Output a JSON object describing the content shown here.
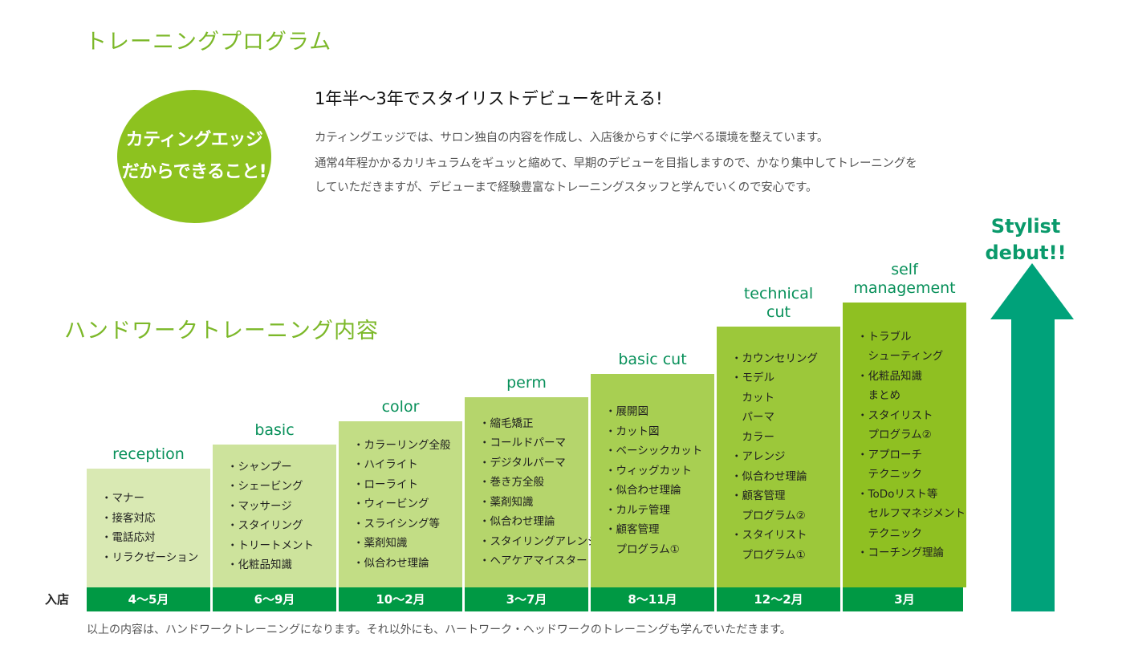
{
  "training_program": {
    "title": "トレーニングプログラム",
    "circle_line1": "カティングエッジ",
    "circle_line2": "だからできること!",
    "headline": "1年半〜3年でスタイリストデビューを叶える!",
    "intro_lines": [
      "カティングエッジでは、サロン独自の内容を作成し、入店後からすぐに学べる環境を整えています。",
      "通常4年程かかるカリキュラムをギュッと縮めて、早期のデビューを目指しますので、かなり集中してトレーニングを",
      "していただきますが、デビューまで経験豊富なトレーニングスタッフと学んでいくので安心です。"
    ]
  },
  "handwork": {
    "title": "ハンドワークトレーニング内容",
    "start_label": "入店",
    "colors": {
      "steps": [
        "#d9e9b3",
        "#cde39c",
        "#c2dd85",
        "#b5d56c",
        "#a8cf52",
        "#9cc83a",
        "#8fc022"
      ],
      "period_bar": "#009944",
      "stage_label": "#08905a",
      "arrow": "#00a27a"
    },
    "stages": [
      {
        "label_lines": [
          "reception"
        ],
        "period": "4〜5月",
        "items": [
          "・マナー",
          "・接客対応",
          "・電話応対",
          "・リラクゼーション"
        ]
      },
      {
        "label_lines": [
          "basic"
        ],
        "period": "6〜9月",
        "items": [
          "・シャンプー",
          "・シェービング",
          "・マッサージ",
          "・スタイリング",
          "・トリートメント",
          "・化粧品知識"
        ]
      },
      {
        "label_lines": [
          "color"
        ],
        "period": "10〜2月",
        "items": [
          "・カラーリング全般",
          "・ハイライト",
          "・ローライト",
          "・ウィービング",
          "・スライシング等",
          "・薬剤知識",
          "・似合わせ理論"
        ]
      },
      {
        "label_lines": [
          "perm"
        ],
        "period": "3〜7月",
        "items": [
          "・縮毛矯正",
          "・コールドパーマ",
          "・デジタルパーマ",
          "・巻き方全般",
          "・薬剤知識",
          "・似合わせ理論",
          "・スタイリングアレンジ",
          "・ヘアケアマイスター"
        ]
      },
      {
        "label_lines": [
          "basic cut"
        ],
        "period": "8〜11月",
        "items": [
          "・展開図",
          "・カット図",
          "・ベーシックカット",
          "・ウィッグカット",
          "・似合わせ理論",
          "・カルテ管理",
          "・顧客管理",
          "　プログラム①"
        ]
      },
      {
        "label_lines": [
          "technical",
          "cut"
        ],
        "period": "12〜2月",
        "items": [
          "・カウンセリング",
          "・モデル",
          "　カット",
          "　パーマ",
          "　カラー",
          "・アレンジ",
          "・似合わせ理論",
          "・顧客管理",
          "　プログラム②",
          "・スタイリスト",
          "　プログラム①"
        ]
      },
      {
        "label_lines": [
          "self",
          "management"
        ],
        "period": "3月",
        "items": [
          "・トラブル",
          "　シューティング",
          "・化粧品知識",
          "　まとめ",
          "・スタイリスト",
          "　プログラム②",
          "・アプローチ",
          "　テクニック",
          "・ToDoリスト等",
          "　セルフマネジメント",
          "　テクニック",
          "・コーチング理論"
        ]
      }
    ],
    "debut_line1": "Stylist",
    "debut_line2": "debut!!",
    "footnote": "以上の内容は、ハンドワークトレーニングになります。それ以外にも、ハートワーク・ヘッドワークのトレーニングも学んでいただきます。"
  }
}
